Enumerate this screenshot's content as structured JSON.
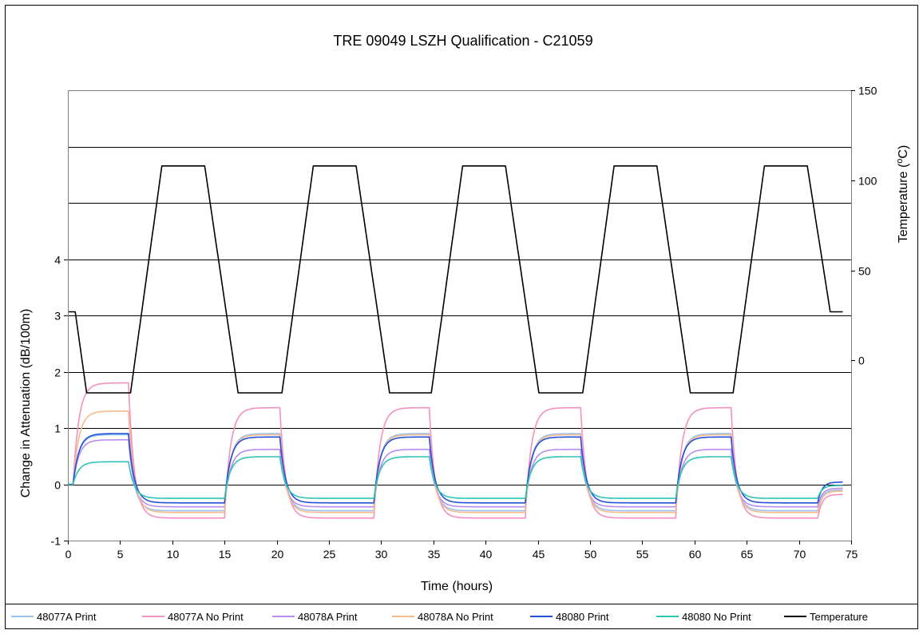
{
  "chart_data": {
    "type": "line",
    "title": "TRE 09049 LSZH Qualification - C21059",
    "xlabel": "Time (hours)",
    "ylabel": "Change in Attenuation (dB/100m)",
    "y2label_main": "Temperature (",
    "y2label_unit_sup": "o",
    "y2label_unit": "C)",
    "xlim": [
      0,
      75
    ],
    "x_ticks": [
      "0",
      "5",
      "10",
      "15",
      "20",
      "25",
      "30",
      "35",
      "40",
      "45",
      "50",
      "55",
      "60",
      "65",
      "70",
      "75"
    ],
    "ylim_left": [
      -1,
      7
    ],
    "y_ticks_left": [
      "-1",
      "0",
      "1",
      "2",
      "3",
      "4"
    ],
    "ylim_right": [
      -100,
      150
    ],
    "y_ticks_right": [
      "0",
      "50",
      "100",
      "150"
    ],
    "grid": true,
    "legend_position": "bottom",
    "cycle_start_hours": [
      0.5,
      15,
      29.3,
      43.8,
      58.2
    ],
    "series": [
      {
        "name": "48077A Print",
        "color": "#99C4EE",
        "axis": "left",
        "first_peak": 0.88,
        "peak": 0.9,
        "trough": -0.47,
        "end": -0.1
      },
      {
        "name": "48077A No Print",
        "color": "#F48FC0",
        "axis": "left",
        "first_peak": 1.8,
        "peak": 1.36,
        "trough": -0.6,
        "end": -0.18
      },
      {
        "name": "48078A Print",
        "color": "#B88CF0",
        "axis": "left",
        "first_peak": 0.79,
        "peak": 0.62,
        "trough": -0.4,
        "end": -0.07
      },
      {
        "name": "48078A No Print",
        "color": "#F7B98A",
        "axis": "left",
        "first_peak": 1.3,
        "peak": 0.88,
        "trough": -0.5,
        "end": -0.12
      },
      {
        "name": "48080 Print",
        "color": "#2450D8",
        "axis": "left",
        "first_peak": 0.9,
        "peak": 0.84,
        "trough": -0.33,
        "end": 0.04
      },
      {
        "name": "48080 No Print",
        "color": "#2EC4B6",
        "axis": "left",
        "first_peak": 0.4,
        "peak": 0.49,
        "trough": -0.25,
        "end": -0.02
      },
      {
        "name": "Temperature",
        "color": "#000000",
        "axis": "right",
        "initial": 27,
        "high": 108,
        "low": -18,
        "final": 27
      }
    ]
  }
}
